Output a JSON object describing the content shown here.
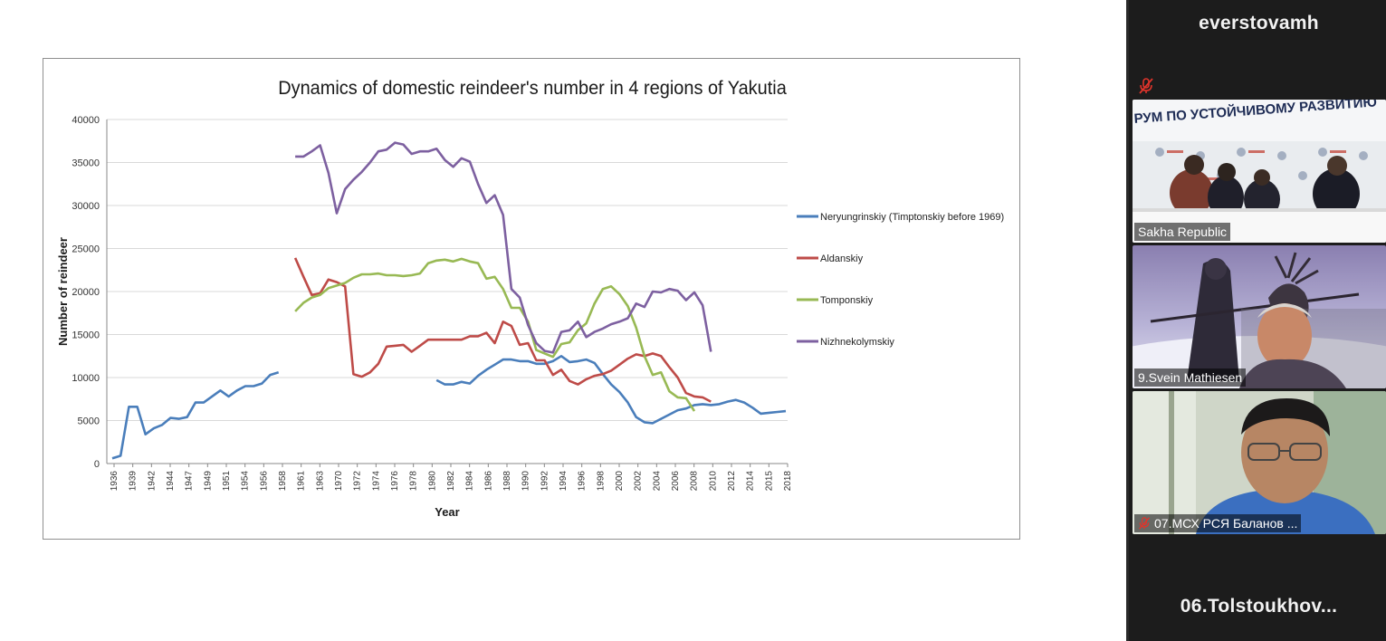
{
  "sidebar": {
    "host_name": "everstovamh",
    "tiles": [
      {
        "label": "Sakha Republic",
        "banner": "РУМ ПО УСТОЙЧИВОМУ РАЗВИТИЮ",
        "muted": false
      },
      {
        "label": "9.Svein Mathiesen",
        "muted": false
      },
      {
        "label": "07.МСХ РСЯ Баланов ...",
        "muted": true
      }
    ],
    "bottom_name": "06.Tolstoukhov..."
  },
  "colors": {
    "neryungrinskiy": "#4a7ebb",
    "aldanskiy": "#be4b48",
    "tomponskiy": "#98b954",
    "nizhnekolymskiy": "#7d60a0",
    "mute_red": "#e0342b"
  },
  "chart_data": {
    "type": "line",
    "title": "Dynamics of domestic reindeer's number in 4 regions of Yakutia",
    "xlabel": "Year",
    "ylabel": "Number of reindeer",
    "ylim": [
      0,
      40000
    ],
    "yticks": [
      0,
      5000,
      10000,
      15000,
      20000,
      25000,
      30000,
      35000,
      40000
    ],
    "xtick_labels": [
      "1936",
      "1939",
      "1942",
      "1944",
      "1947",
      "1949",
      "1951",
      "1954",
      "1956",
      "1958",
      "1961",
      "1963",
      "1970",
      "1972",
      "1974",
      "1976",
      "1978",
      "1980",
      "1982",
      "1984",
      "1986",
      "1988",
      "1990",
      "1992",
      "1994",
      "1996",
      "1998",
      "2000",
      "2002",
      "2004",
      "2006",
      "2008",
      "2010",
      "2012",
      "2014",
      "2015",
      "2018"
    ],
    "grid": true,
    "legend_position": "right",
    "series": [
      {
        "name": "Neryungrinskiy (Timptonskiy before 1969)",
        "color_key": "neryungrinskiy",
        "values": [
          600,
          900,
          6600,
          6600,
          3400,
          4100,
          4500,
          5300,
          5200,
          5400,
          7100,
          7100,
          7800,
          8500,
          7800,
          8500,
          9000,
          9000,
          9300,
          10300,
          10600,
          null,
          null,
          null,
          null,
          null,
          null,
          null,
          null,
          null,
          null,
          null,
          null,
          null,
          null,
          null,
          null,
          null,
          null,
          9700,
          9200,
          9200,
          9500,
          9300,
          10200,
          10900,
          11500,
          12100,
          12100,
          11900,
          11900,
          11600,
          11600,
          11900,
          12500,
          11800,
          11900,
          12100,
          11700,
          10400,
          9200,
          8300,
          7100,
          5400,
          4800,
          4700,
          5200,
          5700,
          6200,
          6400,
          6800,
          6900,
          6800,
          6900,
          7200,
          7400,
          7100,
          6500,
          5800,
          5900,
          6000,
          6100
        ]
      },
      {
        "name": "Aldanskiy",
        "color_key": "aldanskiy",
        "values": [
          null,
          null,
          null,
          null,
          null,
          null,
          null,
          null,
          null,
          null,
          null,
          null,
          null,
          null,
          null,
          null,
          null,
          null,
          null,
          null,
          null,
          null,
          23900,
          21700,
          19600,
          19800,
          21400,
          21100,
          20600,
          10400,
          10100,
          10600,
          11600,
          13600,
          13700,
          13800,
          13000,
          13700,
          14400,
          14400,
          14400,
          14400,
          14400,
          14800,
          14800,
          15200,
          14000,
          16500,
          16000,
          13800,
          14000,
          12000,
          12000,
          10300,
          10900,
          9600,
          9200,
          9800,
          10200,
          10400,
          10800,
          11500,
          12200,
          12700,
          12500,
          12800,
          12500,
          11200,
          10000,
          8200,
          7800,
          7700,
          7200
        ]
      },
      {
        "name": "Tomponskiy",
        "color_key": "tomponskiy",
        "values": [
          null,
          null,
          null,
          null,
          null,
          null,
          null,
          null,
          null,
          null,
          null,
          null,
          null,
          null,
          null,
          null,
          null,
          null,
          null,
          null,
          null,
          null,
          17700,
          18700,
          19300,
          19600,
          20400,
          20700,
          21000,
          21600,
          22000,
          22000,
          22100,
          21900,
          21900,
          21800,
          21900,
          22100,
          23300,
          23600,
          23700,
          23500,
          23800,
          23500,
          23300,
          21500,
          21700,
          20300,
          18100,
          18100,
          16500,
          13200,
          12800,
          12400,
          13900,
          14100,
          15500,
          16300,
          18600,
          20300,
          20600,
          19700,
          18300,
          15800,
          12500,
          10300,
          10600,
          8400,
          7700,
          7600,
          6100
        ]
      },
      {
        "name": "Nizhnekolymskiy",
        "color_key": "nizhnekolymskiy",
        "values": [
          null,
          null,
          null,
          null,
          null,
          null,
          null,
          null,
          null,
          null,
          null,
          null,
          null,
          null,
          null,
          null,
          null,
          null,
          null,
          null,
          null,
          null,
          35700,
          35700,
          36300,
          37000,
          33800,
          29100,
          31900,
          33000,
          33900,
          35000,
          36300,
          36500,
          37300,
          37100,
          36000,
          36300,
          36300,
          36600,
          35300,
          34500,
          35500,
          35100,
          32500,
          30300,
          31200,
          28900,
          20300,
          19300,
          16100,
          14000,
          13100,
          12900,
          15300,
          15500,
          16500,
          14700,
          15300,
          15700,
          16200,
          16500,
          16900,
          18600,
          18200,
          20000,
          19900,
          20300,
          20100,
          19000,
          19900,
          18400,
          13000
        ]
      }
    ]
  }
}
